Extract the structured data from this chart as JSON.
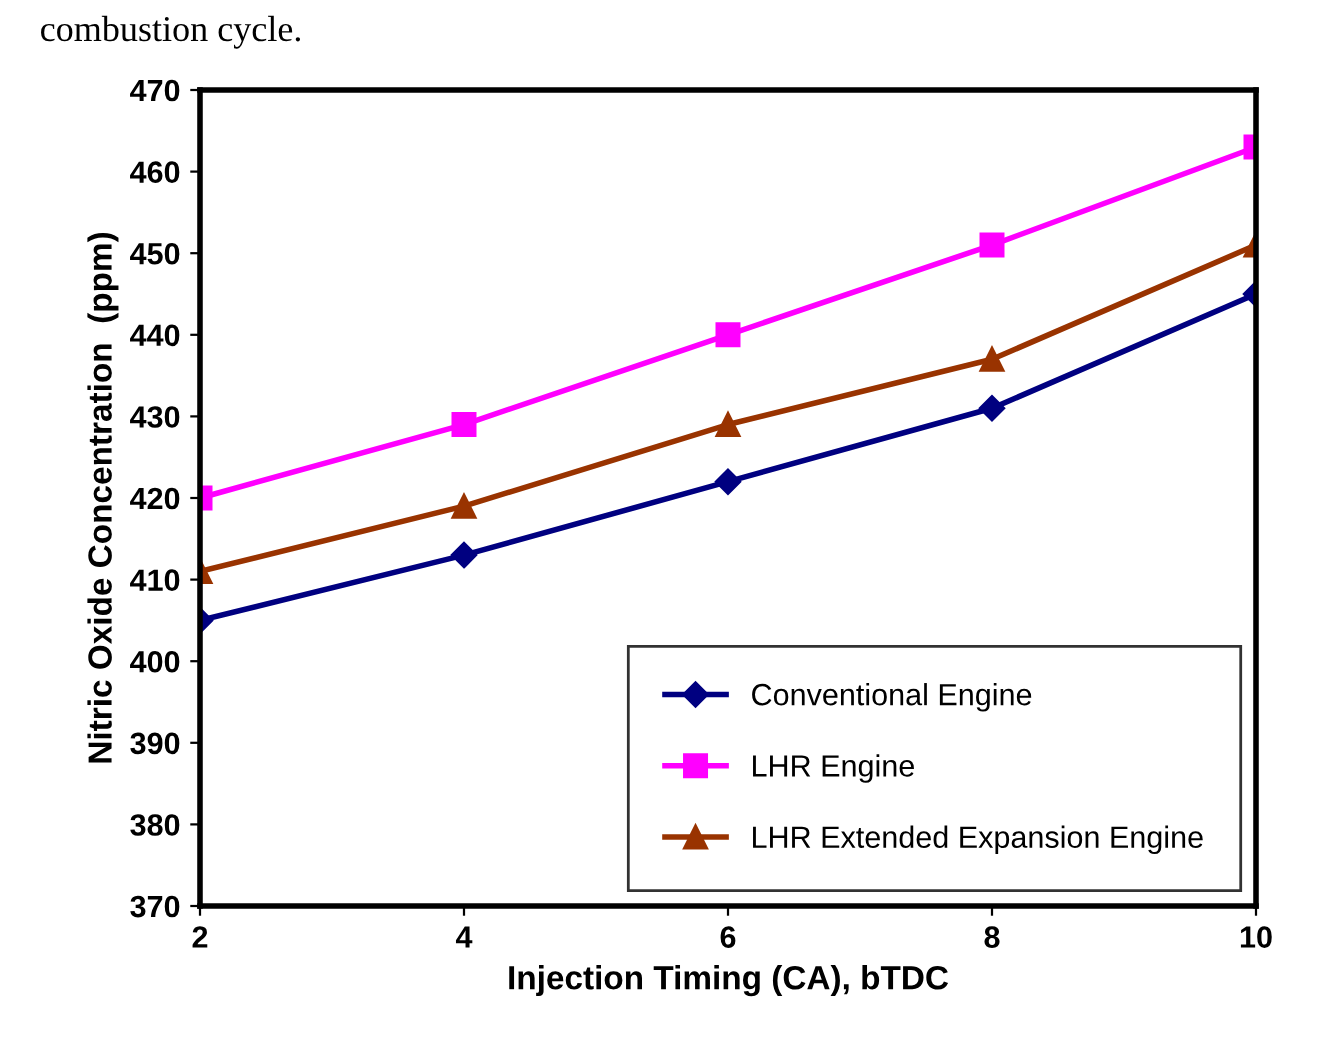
{
  "chart_data": {
    "type": "line",
    "xlabel": "Injection Timing (CA), bTDC",
    "ylabel": "Nitric Oxide Concentration  (ppm)",
    "annotations": [
      "combustion cycle."
    ],
    "x": [
      2,
      4,
      6,
      8,
      10
    ],
    "xlim": [
      2,
      10
    ],
    "xticks": [
      2,
      4,
      6,
      8,
      10
    ],
    "ylim": [
      370,
      470
    ],
    "yticks": [
      370,
      380,
      390,
      400,
      410,
      420,
      430,
      440,
      450,
      460,
      470
    ],
    "grid": false,
    "legend": "bottom right",
    "series": [
      {
        "name": "Conventional Engine",
        "color": "#000080",
        "marker": "diamond",
        "values": [
          405,
          413,
          422,
          431,
          445
        ]
      },
      {
        "name": "LHR Engine",
        "color": "#ff00ff",
        "marker": "square",
        "values": [
          420,
          429,
          440,
          451,
          463
        ]
      },
      {
        "name": "LHR Extended Expansion Engine",
        "color": "#993300",
        "marker": "triangle",
        "values": [
          411,
          419,
          429,
          437,
          451
        ]
      }
    ]
  }
}
